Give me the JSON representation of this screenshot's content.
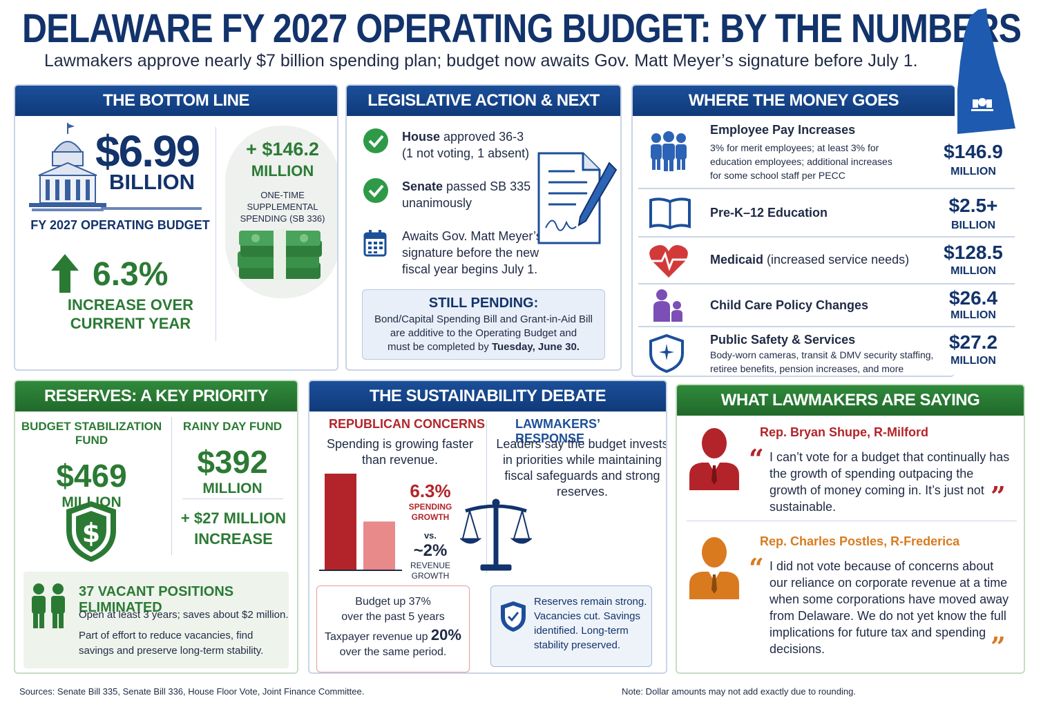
{
  "header": {
    "title": "DELAWARE FY 2027 OPERATING BUDGET: BY THE NUMBERS",
    "subtitle": "Lawmakers approve nearly $7 billion spending plan; budget now awaits Gov. Matt Meyer’s signature before July 1."
  },
  "bottom_line": {
    "heading": "THE BOTTOM LINE",
    "amount": "$6.99",
    "unit": "BILLION",
    "caption": "FY 2027 OPERATING BUDGET",
    "pct": "6.3%",
    "pct_caption_1": "INCREASE OVER",
    "pct_caption_2": "CURRENT YEAR",
    "supplemental_amount": "+ $146.2",
    "supplemental_unit": "MILLION",
    "supplemental_note_1": "ONE-TIME SUPPLEMENTAL",
    "supplemental_note_2": "SPENDING (SB 336)"
  },
  "legislative": {
    "heading": "LEGISLATIVE ACTION & NEXT STEPS",
    "house_bold": "House",
    "house_rest": " approved 36-3",
    "house_line2": "(1 not voting, 1 absent)",
    "senate_bold": "Senate",
    "senate_rest": " passed SB 335",
    "senate_line2": "unanimously",
    "gov_1": "Awaits Gov. Matt Meyer’s",
    "gov_2": "signature before the new",
    "gov_3": "fiscal year begins July 1.",
    "pending_title": "STILL PENDING:",
    "pending_1": "Bond/Capital Spending Bill and Grant-in-Aid Bill",
    "pending_2": "are additive to the Operating Budget and",
    "pending_3a": "must be completed by ",
    "pending_3b": "Tuesday, June 30."
  },
  "money": {
    "heading": "WHERE THE MONEY GOES",
    "items": [
      {
        "label": "Employee Pay Increases",
        "desc_1": "3% for merit employees; at least 3% for",
        "desc_2": "education employees; additional increases",
        "desc_3": "for some school staff per PECC",
        "amount": "$146.9",
        "unit": "MILLION",
        "icon": "people-icon"
      },
      {
        "label": "Pre-K–12 Education",
        "amount": "$2.5+",
        "unit": "BILLION",
        "icon": "book-icon"
      },
      {
        "label": "Medicaid",
        "label_rest": " (increased service needs)",
        "amount": "$128.5",
        "unit": "MILLION",
        "icon": "heart-pulse-icon"
      },
      {
        "label": "Child Care Policy Changes",
        "amount": "$26.4",
        "unit": "MILLION",
        "icon": "parent-child-icon"
      },
      {
        "label": "Public Safety & Services",
        "desc_1": "Body-worn cameras, transit & DMV security staffing,",
        "desc_2": "retiree benefits, pension increases, and more",
        "amount": "$27.2",
        "unit": "MILLION",
        "icon": "shield-icon"
      }
    ]
  },
  "reserves": {
    "heading": "RESERVES: A KEY PRIORITY",
    "bsf_name": "BUDGET STABILIZATION FUND",
    "bsf_amount": "$469",
    "bsf_unit": "MILLION",
    "rdf_name": "RAINY DAY FUND",
    "rdf_amount": "$392",
    "rdf_unit": "MILLION",
    "rdf_increase_1": "+ $27 MILLION",
    "rdf_increase_2": "INCREASE",
    "vacant_title": "37 VACANT POSITIONS ELIMINATED",
    "vacant_1": "Open at least 3 years; saves about $2 million.",
    "vacant_2": "Part of effort to reduce vacancies, find savings and preserve long-term stability."
  },
  "sustainability": {
    "heading": "THE SUSTAINABILITY DEBATE",
    "rep_head": "REPUBLICAN CONCERNS",
    "rep_text": "Spending is growing faster than revenue.",
    "law_head": "LAWMAKERS’ RESPONSE",
    "law_text": "Leaders say the budget invests in priorities while maintaining fiscal safeguards and strong reserves.",
    "spend_pct": "6.3%",
    "spend_lbl_1": "SPENDING",
    "spend_lbl_2": "GROWTH",
    "vs": "vs.",
    "rev_pct": "~2%",
    "rev_lbl_1": "REVENUE",
    "rev_lbl_2": "GROWTH",
    "redbox_1": "Budget up 37%",
    "redbox_2": "over the past 5 years",
    "redbox_3a": "Taxpayer revenue up ",
    "redbox_3b": "20%",
    "redbox_4": "over the same period.",
    "bluebox": "Reserves remain strong. Vacancies cut. Savings identified. Long-term stability preserved."
  },
  "chart_data": {
    "type": "bar",
    "categories": [
      "SPENDING GROWTH",
      "REVENUE GROWTH"
    ],
    "values": [
      6.3,
      2
    ],
    "colors": [
      "#b3242a",
      "#e88a8a"
    ]
  },
  "quotes": {
    "heading": "WHAT LAWMAKERS ARE SAYING",
    "q1_name": "Rep. Bryan Shupe, R-Milford",
    "q1_text": "I can’t vote for a budget that continually has the growth of spending outpacing the growth of money coming in. It’s just not sustainable.",
    "q2_name": "Rep. Charles Postles, R-Frederica",
    "q2_text": "I did not vote because of concerns about our reliance on corporate revenue at a time when some corporations have moved away from Delaware. We do not yet know the full implications for future tax and spending decisions.",
    "open_mark": "“",
    "close_mark": "”"
  },
  "footer": {
    "sources": "Sources: Senate Bill 335, Senate Bill 336, House Floor Vote, Joint Finance Committee.",
    "note": "Note: Dollar amounts may not add exactly due to rounding."
  },
  "colors": {
    "navy": "#12336b",
    "green": "#2b7a34",
    "red": "#b3242a",
    "orange": "#d97a1f"
  }
}
